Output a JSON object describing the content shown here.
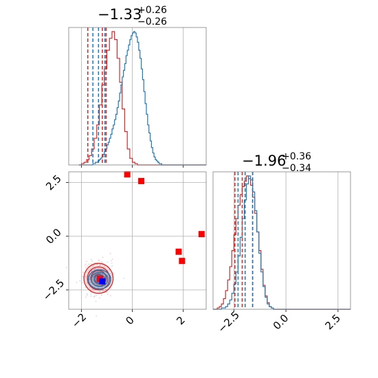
{
  "chart_data": {
    "type": "corner",
    "params": [
      {
        "title_main": "−1.33",
        "title_plus": "+0.26",
        "title_minus": "−0.26",
        "quantiles_blue": [
          -1.55,
          -1.33,
          -1.08
        ],
        "quantiles_red": [
          -1.75,
          -1.18,
          -1.03
        ]
      },
      {
        "title_main": "−1.96",
        "title_plus": "+0.36",
        "title_minus": "−0.34",
        "quantiles_blue": [
          -2.3,
          -1.96,
          -1.6
        ],
        "quantiles_red": [
          -2.45,
          -2.1,
          -1.6
        ]
      }
    ],
    "xlim": [
      -2.5,
      2.9
    ],
    "ylim": [
      -3.4,
      3.0
    ],
    "ticks": [
      -2,
      0,
      2
    ],
    "tick_labels": [
      "−2",
      "0",
      "2"
    ],
    "ticks2": [
      -2.5,
      0.0,
      2.5
    ],
    "tick_labels2": [
      "−2.5",
      "0.0",
      "2.5"
    ],
    "hist1_edges": [
      -2.1,
      2.9
    ],
    "hist1_blue": [
      0,
      0,
      0,
      0,
      0,
      0,
      0,
      0,
      0,
      0,
      0,
      1,
      1,
      2,
      2,
      3,
      4,
      5,
      6,
      8,
      10,
      12,
      15,
      17,
      20,
      23,
      27,
      30,
      34,
      38,
      43,
      48,
      54,
      60,
      66,
      71,
      76,
      82,
      86,
      90,
      94,
      97,
      99,
      100,
      99,
      96,
      92,
      86,
      80,
      72,
      64,
      55,
      46,
      38,
      30,
      24,
      18,
      13,
      9,
      6,
      4,
      3,
      2,
      1,
      1,
      0,
      0,
      0,
      0,
      0,
      0,
      0,
      0,
      0,
      0,
      0,
      0,
      0,
      0,
      0,
      0,
      0,
      0,
      0,
      0,
      0,
      0,
      0,
      0,
      0,
      0,
      0,
      0,
      0,
      0,
      0,
      0,
      0,
      0,
      0
    ],
    "hist1_red_edges": [
      -2.1,
      2.9
    ],
    "hist1_red": [
      0,
      1,
      2,
      4,
      7,
      12,
      20,
      30,
      45,
      60,
      72,
      86,
      95,
      100,
      94,
      80,
      62,
      42,
      25,
      12,
      5,
      2,
      1,
      0,
      0,
      0,
      0,
      0,
      0,
      0,
      0,
      0,
      0,
      0,
      0,
      0,
      0,
      0,
      0,
      0,
      0,
      0,
      0,
      0,
      0,
      0,
      0,
      0,
      0,
      0
    ],
    "hist2_edges": [
      -3.5,
      3.1
    ],
    "hist2_blue": [
      0,
      0,
      0,
      0,
      1,
      1,
      2,
      4,
      7,
      12,
      19,
      28,
      40,
      54,
      68,
      82,
      94,
      100,
      97,
      88,
      74,
      58,
      42,
      28,
      17,
      9,
      4,
      2,
      1,
      0,
      0,
      0,
      0,
      0,
      0,
      0,
      0,
      0,
      0,
      0,
      0,
      0,
      0,
      0,
      0,
      0,
      0,
      0,
      0,
      0,
      0,
      0,
      0,
      0,
      0,
      0,
      0,
      0,
      0,
      0,
      0,
      0,
      0,
      0,
      0,
      0
    ],
    "hist2_red_edges": [
      -3.5,
      3.1
    ],
    "hist2_red": [
      0,
      0,
      1,
      2,
      4,
      8,
      14,
      22,
      32,
      44,
      56,
      68,
      78,
      86,
      92,
      96,
      100,
      98,
      93,
      84,
      72,
      58,
      44,
      30,
      18,
      10,
      5,
      2,
      1,
      0,
      0,
      0,
      0,
      0,
      0,
      0,
      0,
      0,
      0,
      0,
      0,
      0,
      0,
      0,
      0,
      0,
      0,
      0,
      0,
      0,
      0,
      0,
      0,
      0,
      0,
      0,
      0,
      0,
      0,
      0,
      0,
      0,
      0,
      0,
      0,
      0
    ],
    "red_squares": [
      {
        "x": -0.2,
        "y": 2.88
      },
      {
        "x": 0.35,
        "y": 2.57
      },
      {
        "x": 2.72,
        "y": 0.1
      },
      {
        "x": 1.82,
        "y": -0.72
      },
      {
        "x": 1.95,
        "y": -1.15
      },
      {
        "x": -1.27,
        "y": -1.98
      }
    ],
    "blue_square": {
      "x": -1.18,
      "y": -2.1
    },
    "contour_center": {
      "x": -1.33,
      "y": -1.96
    },
    "contour_sigma": {
      "x": 0.26,
      "y": 0.35
    },
    "colors": {
      "blue": "#1f77b4",
      "red": "#d62728",
      "marker_red": "#ff0000",
      "marker_blue": "#0000ff"
    }
  }
}
